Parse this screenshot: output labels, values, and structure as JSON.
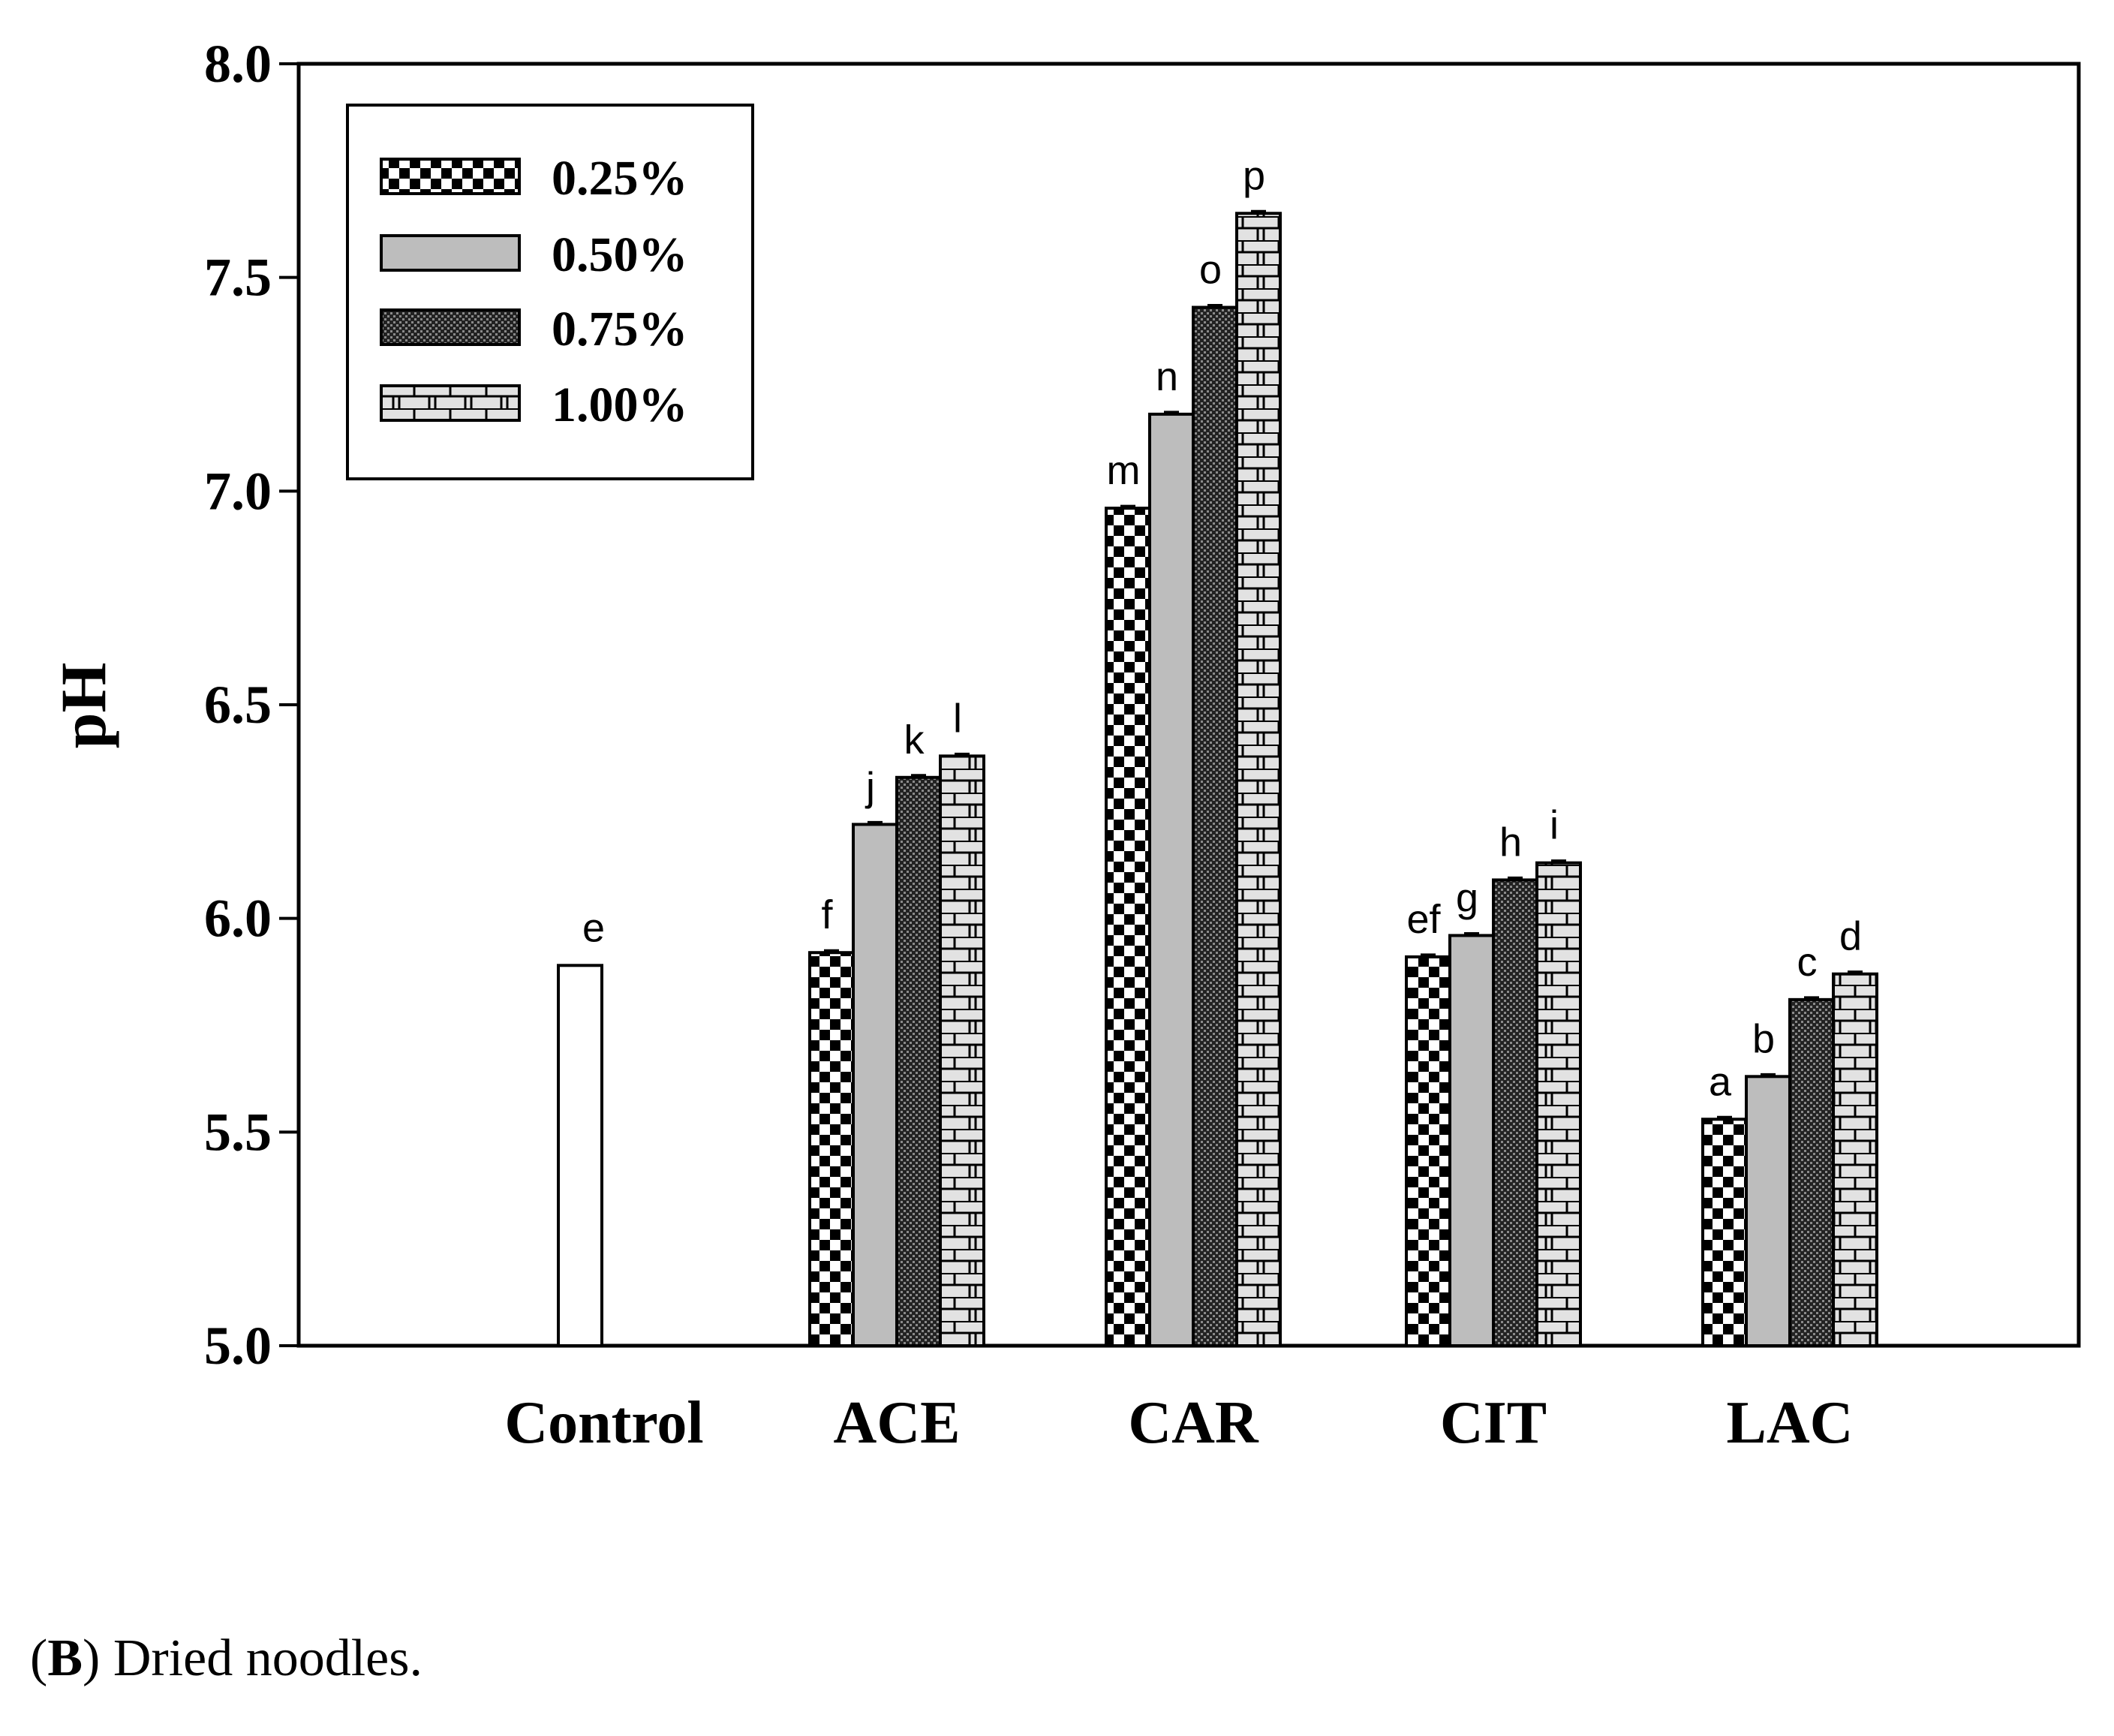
{
  "chart_data": {
    "type": "bar",
    "title": "",
    "xlabel": "",
    "ylabel": "pH",
    "ylim": [
      5.0,
      8.0
    ],
    "yticks": [
      "5.0",
      "5.5",
      "6.0",
      "6.5",
      "7.0",
      "7.5",
      "8.0"
    ],
    "categories": [
      "Control",
      "ACE",
      "CAR",
      "CIT",
      "LAC"
    ],
    "control": {
      "value": 5.89,
      "letter": "e"
    },
    "series": [
      {
        "name": "0.25%",
        "pattern": "checker",
        "values": [
          null,
          5.92,
          6.96,
          5.91,
          5.53
        ],
        "letters": [
          "",
          "f",
          "m",
          "ef",
          "a"
        ]
      },
      {
        "name": "0.50%",
        "pattern": "gray",
        "values": [
          null,
          6.22,
          7.18,
          5.96,
          5.63
        ],
        "letters": [
          "",
          "j",
          "n",
          "g",
          "b"
        ]
      },
      {
        "name": "0.75%",
        "pattern": "dark-dots",
        "values": [
          null,
          6.33,
          7.43,
          6.09,
          5.81
        ],
        "letters": [
          "",
          "k",
          "o",
          "h",
          "c"
        ]
      },
      {
        "name": "1.00%",
        "pattern": "brick",
        "values": [
          null,
          6.38,
          7.65,
          6.13,
          5.87
        ],
        "letters": [
          "",
          "l",
          "p",
          "i",
          "d"
        ]
      }
    ],
    "legend_position": "top-left",
    "grid": false
  },
  "caption": {
    "label": "B",
    "text": "Dried noodles."
  },
  "colors": {
    "gray_fill": "#bdbdbd",
    "brick_fill": "#e2e2e2",
    "dark_fill": "#2a2a2a"
  }
}
